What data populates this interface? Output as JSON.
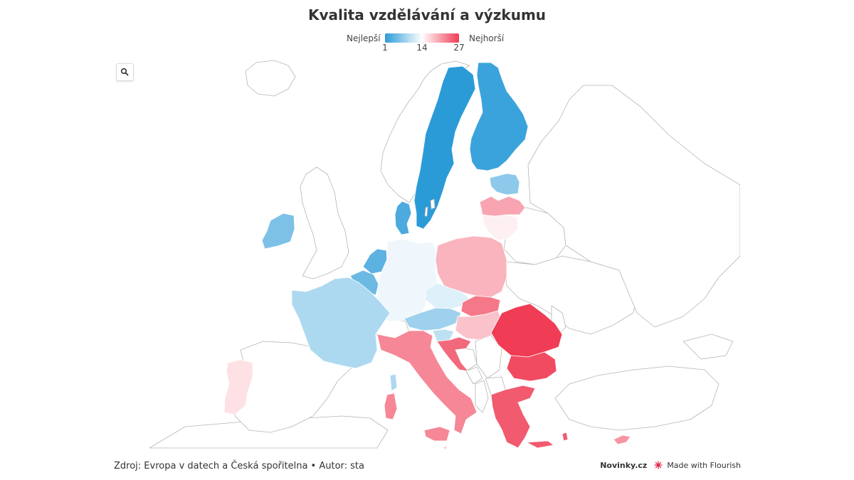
{
  "title": "Kvalita vzdělávání a výzkumu",
  "legend": {
    "label_best": "Nejlepší",
    "label_worst": "Nejhorší",
    "min": 1,
    "mid": 14,
    "max": 27,
    "color_best": "#2b9bd8",
    "color_mid": "#ffffff",
    "color_worst": "#f03c55"
  },
  "controls": {
    "zoom_icon": "search-icon"
  },
  "map": {
    "countries": [
      {
        "name": "Sweden",
        "rank": 1
      },
      {
        "name": "Finland",
        "rank": 2
      },
      {
        "name": "Denmark",
        "rank": 3
      },
      {
        "name": "Netherlands",
        "rank": 4
      },
      {
        "name": "Belgium",
        "rank": 5
      },
      {
        "name": "Ireland",
        "rank": 6
      },
      {
        "name": "Estonia",
        "rank": 7
      },
      {
        "name": "Austria",
        "rank": 8
      },
      {
        "name": "France",
        "rank": 9
      },
      {
        "name": "Slovenia",
        "rank": 10
      },
      {
        "name": "Luxembourg",
        "rank": 11
      },
      {
        "name": "Czech Republic",
        "rank": 12
      },
      {
        "name": "Germany",
        "rank": 13
      },
      {
        "name": "Lithuania",
        "rank": 15
      },
      {
        "name": "Portugal",
        "rank": 16
      },
      {
        "name": "Malta",
        "rank": 17
      },
      {
        "name": "Hungary",
        "rank": 18
      },
      {
        "name": "Poland",
        "rank": 19
      },
      {
        "name": "Latvia",
        "rank": 20
      },
      {
        "name": "Cyprus",
        "rank": 21
      },
      {
        "name": "Italy",
        "rank": 22
      },
      {
        "name": "Slovakia",
        "rank": 23
      },
      {
        "name": "Croatia",
        "rank": 24
      },
      {
        "name": "Greece",
        "rank": 25
      },
      {
        "name": "Bulgaria",
        "rank": 26
      },
      {
        "name": "Romania",
        "rank": 27
      }
    ]
  },
  "source": "Zdroj: Evropa v datech a Česká spořitelna • Autor: sta",
  "footer": {
    "brand": "Novinky.cz",
    "made_with": "Made with Flourish"
  }
}
